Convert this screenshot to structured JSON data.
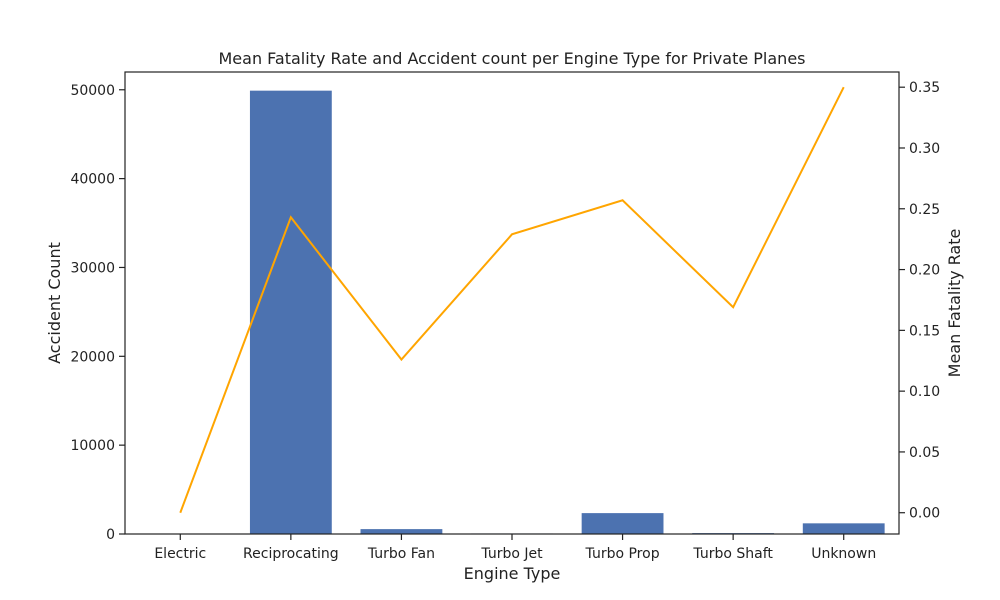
{
  "chart_data": {
    "type": "bar",
    "title": "Mean Fatality Rate and Accident count per Engine Type for Private Planes",
    "xlabel": "Engine Type",
    "ylabel": "Accident Count",
    "y2label": "Mean Fatality Rate",
    "categories": [
      "Electric",
      "Reciprocating",
      "Turbo Fan",
      "Turbo Jet",
      "Turbo Prop",
      "Turbo Shaft",
      "Unknown"
    ],
    "series": [
      {
        "type": "bar",
        "axis": "left",
        "values": [
          5,
          49900,
          550,
          60,
          2350,
          100,
          1200
        ]
      },
      {
        "type": "line",
        "axis": "right",
        "values": [
          0.0,
          0.243,
          0.126,
          0.229,
          0.257,
          0.169,
          0.35
        ]
      }
    ],
    "ylim": [
      0,
      52000
    ],
    "y2lim": [
      -0.0175,
      0.3625
    ],
    "yticks": [
      "0",
      "10000",
      "20000",
      "30000",
      "40000",
      "50000"
    ],
    "y2ticks": [
      "0.00",
      "0.05",
      "0.10",
      "0.15",
      "0.20",
      "0.25",
      "0.30",
      "0.35"
    ],
    "colors": {
      "bar": "#4c72b0",
      "line": "#ffa500",
      "axis": "#222222"
    },
    "grid": false
  }
}
